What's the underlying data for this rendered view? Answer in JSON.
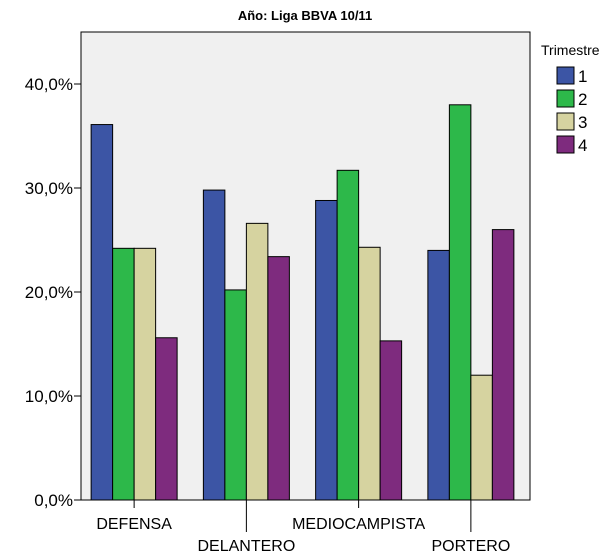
{
  "chart_data": {
    "type": "bar",
    "title": "Año: Liga BBVA 10/11",
    "xlabel": "",
    "ylabel": "",
    "categories": [
      "DEFENSA",
      "DELANTERO",
      "MEDIOCAMPISTA",
      "PORTERO"
    ],
    "series": [
      {
        "name": "1",
        "color": "#3c55a5",
        "values": [
          36.1,
          29.8,
          28.8,
          24.0
        ]
      },
      {
        "name": "2",
        "color": "#2db84a",
        "values": [
          24.2,
          20.2,
          31.7,
          38.0
        ]
      },
      {
        "name": "3",
        "color": "#d6d3a0",
        "values": [
          24.2,
          26.6,
          24.3,
          12.0
        ]
      },
      {
        "name": "4",
        "color": "#7e2b7e",
        "values": [
          15.6,
          23.4,
          15.3,
          26.0
        ]
      }
    ],
    "ylim": [
      0,
      45
    ],
    "yticks": [
      0,
      10,
      20,
      30,
      40
    ],
    "ytick_labels": [
      "0,0%",
      "10,0%",
      "20,0%",
      "30,0%",
      "40,0%"
    ],
    "legend_title": "Trimestre",
    "legend_position": "right",
    "grid": false,
    "plot_background": "#f0f0f0"
  }
}
